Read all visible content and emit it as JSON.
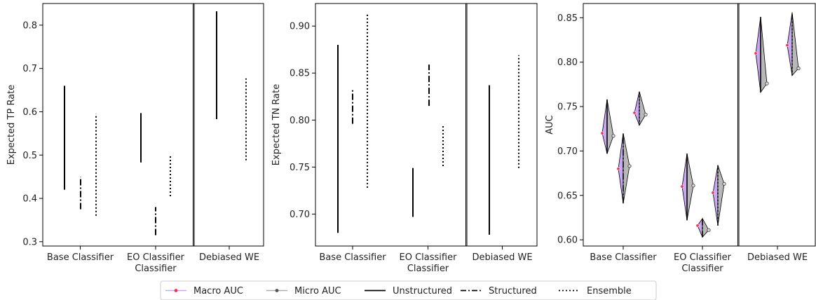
{
  "chart_data": [
    {
      "type": "range",
      "ylabel": "Expected TP Rate",
      "xlabel": "Classifier",
      "ylim": [
        0.29,
        0.85
      ],
      "yticks": [
        0.3,
        0.4,
        0.5,
        0.6,
        0.7,
        0.8
      ],
      "categories": [
        "Base Classifier",
        "EO Classifier",
        "Debiased WE"
      ],
      "series": [
        {
          "name": "Unstructured",
          "ranges": [
            [
              0.42,
              0.66
            ],
            [
              0.483,
              0.597
            ],
            [
              0.583,
              0.832
            ]
          ]
        },
        {
          "name": "Structured",
          "ranges": [
            [
              0.375,
              0.45
            ],
            [
              0.315,
              0.38
            ],
            null
          ]
        },
        {
          "name": "Ensemble",
          "ranges": [
            [
              0.36,
              0.595
            ],
            [
              0.405,
              0.5
            ],
            [
              0.488,
              0.677
            ]
          ]
        }
      ]
    },
    {
      "type": "range",
      "ylabel": "Expected TN Rate",
      "xlabel": "Classifier",
      "ylim": [
        0.666,
        0.924
      ],
      "yticks": [
        0.7,
        0.75,
        0.8,
        0.85,
        0.9
      ],
      "categories": [
        "Base Classifier",
        "EO Classifier",
        "Debiased WE"
      ],
      "series": [
        {
          "name": "Unstructured",
          "ranges": [
            [
              0.68,
              0.88
            ],
            [
              0.697,
              0.749
            ],
            [
              0.678,
              0.837
            ]
          ]
        },
        {
          "name": "Structured",
          "ranges": [
            [
              0.796,
              0.833
            ],
            [
              0.815,
              0.859
            ],
            null
          ]
        },
        {
          "name": "Ensemble",
          "ranges": [
            [
              0.728,
              0.914
            ],
            [
              0.751,
              0.794
            ],
            [
              0.749,
              0.869
            ]
          ]
        }
      ]
    },
    {
      "type": "violin",
      "ylabel": "AUC",
      "xlabel": "Classifier",
      "ylim": [
        0.593,
        0.866
      ],
      "yticks": [
        0.6,
        0.65,
        0.7,
        0.75,
        0.8,
        0.85
      ],
      "categories": [
        "Base Classifier",
        "EO Classifier",
        "Debiased WE"
      ],
      "series": [
        {
          "name": "Unstructured",
          "groups": [
            {
              "min": 0.697,
              "max": 0.758,
              "macro": 0.72,
              "micro": 0.717
            },
            {
              "min": 0.622,
              "max": 0.697,
              "macro": 0.66,
              "micro": 0.661
            },
            {
              "min": 0.766,
              "max": 0.851,
              "macro": 0.81,
              "micro": 0.776
            }
          ]
        },
        {
          "name": "Structured",
          "groups": [
            {
              "min": 0.641,
              "max": 0.72,
              "macro": 0.68,
              "micro": 0.683
            },
            {
              "min": 0.603,
              "max": 0.624,
              "macro": 0.616,
              "micro": 0.611
            },
            null
          ]
        },
        {
          "name": "Ensemble",
          "groups": [
            {
              "min": 0.729,
              "max": 0.767,
              "macro": 0.743,
              "micro": 0.741
            },
            {
              "min": 0.616,
              "max": 0.684,
              "macro": 0.653,
              "micro": 0.663
            },
            {
              "min": 0.785,
              "max": 0.856,
              "macro": 0.819,
              "micro": 0.793
            }
          ]
        }
      ]
    }
  ],
  "legend": {
    "items": [
      {
        "label": "Macro AUC",
        "kind": "macro"
      },
      {
        "label": "Micro AUC",
        "kind": "micro"
      },
      {
        "label": "Unstructured",
        "kind": "solid"
      },
      {
        "label": "Structured",
        "kind": "dashdot"
      },
      {
        "label": "Ensemble",
        "kind": "dotted"
      }
    ]
  },
  "colors": {
    "line": "#000000",
    "macro_marker": "#ff2d55",
    "micro_marker": "#555555",
    "macro_fill": "#c8a8f0",
    "micro_fill": "#b8b8b8"
  }
}
